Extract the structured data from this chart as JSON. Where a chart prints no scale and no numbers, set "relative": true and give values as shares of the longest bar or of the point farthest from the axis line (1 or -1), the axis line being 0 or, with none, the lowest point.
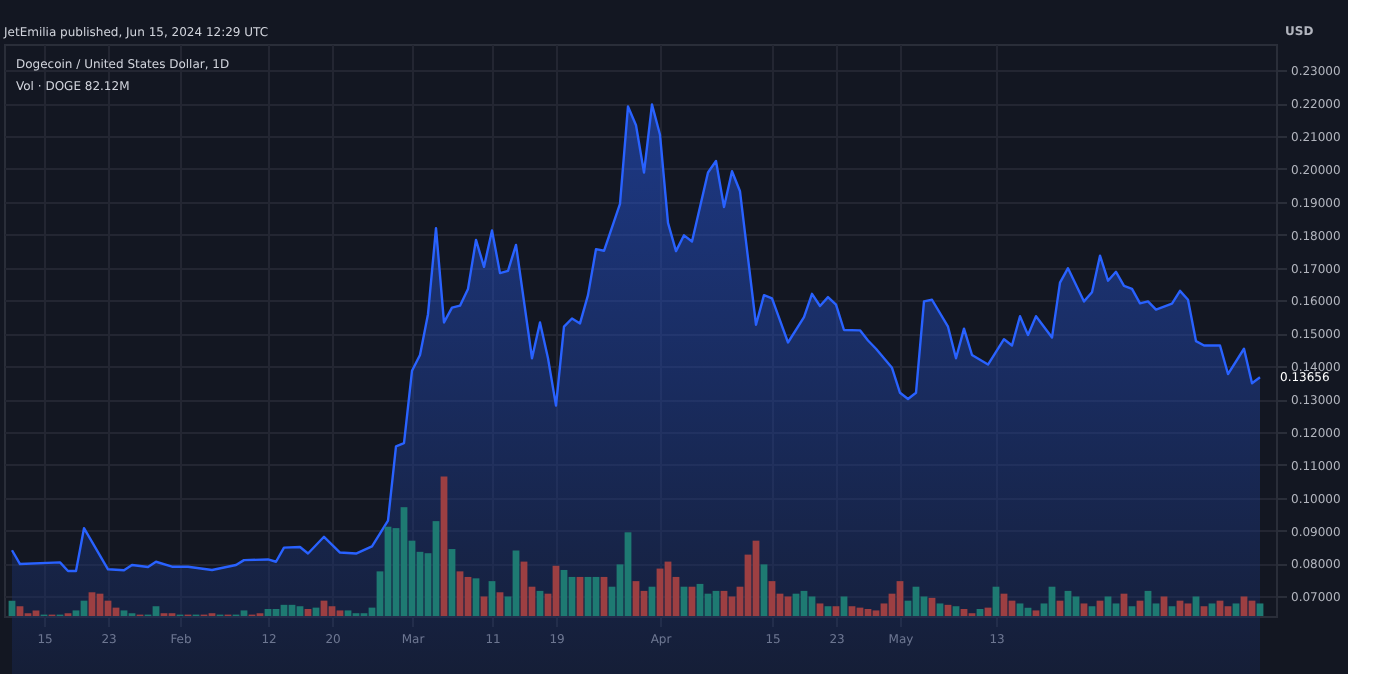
{
  "chart_data": [
    {
      "type": "area",
      "title": "Dogecoin / United States Dollar, 1D",
      "subtitle": "Vol · DOGE 82.12M",
      "ylabel": "USD",
      "annotations": [
        "JetEmilia published, Jun 15, 2024 12:29 UTC",
        {
          "text": "0.13656",
          "x": "2024-06-15",
          "y": 0.13656
        }
      ],
      "series": [
        {
          "color": "#2962ff",
          "x": [
            "2024-01-11",
            "2024-01-12",
            "2024-01-17",
            "2024-01-18",
            "2024-01-19",
            "2024-01-20",
            "2024-01-23",
            "2024-01-25",
            "2024-01-26",
            "2024-01-28",
            "2024-01-29",
            "2024-01-31",
            "2024-02-02",
            "2024-02-05",
            "2024-02-08",
            "2024-02-09",
            "2024-02-12",
            "2024-02-13",
            "2024-02-14",
            "2024-02-16",
            "2024-02-17",
            "2024-02-19",
            "2024-02-21",
            "2024-02-23",
            "2024-02-25",
            "2024-02-27",
            "2024-02-28",
            "2024-02-29",
            "2024-03-01",
            "2024-03-02",
            "2024-03-03",
            "2024-03-04",
            "2024-03-05",
            "2024-03-06",
            "2024-03-07",
            "2024-03-08",
            "2024-03-09",
            "2024-03-10",
            "2024-03-11",
            "2024-03-12",
            "2024-03-13",
            "2024-03-14",
            "2024-03-16",
            "2024-03-17",
            "2024-03-18",
            "2024-03-19",
            "2024-03-20",
            "2024-03-21",
            "2024-03-22",
            "2024-03-23",
            "2024-03-24",
            "2024-03-25",
            "2024-03-27",
            "2024-03-28",
            "2024-03-29",
            "2024-03-30",
            "2024-03-31",
            "2024-04-01",
            "2024-04-02",
            "2024-04-03",
            "2024-04-04",
            "2024-04-05",
            "2024-04-07",
            "2024-04-08",
            "2024-04-09",
            "2024-04-10",
            "2024-04-11",
            "2024-04-13",
            "2024-04-14",
            "2024-04-15",
            "2024-04-17",
            "2024-04-19",
            "2024-04-20",
            "2024-04-21",
            "2024-04-22",
            "2024-04-23",
            "2024-04-24",
            "2024-04-26",
            "2024-04-27",
            "2024-04-28",
            "2024-04-30",
            "2024-05-01",
            "2024-05-02",
            "2024-05-03",
            "2024-05-04",
            "2024-05-05",
            "2024-05-07",
            "2024-05-08",
            "2024-05-09",
            "2024-05-10",
            "2024-05-12",
            "2024-05-14",
            "2024-05-15",
            "2024-05-16",
            "2024-05-17",
            "2024-05-18",
            "2024-05-20",
            "2024-05-21",
            "2024-05-22",
            "2024-05-24",
            "2024-05-25",
            "2024-05-26",
            "2024-05-27",
            "2024-05-28",
            "2024-05-29",
            "2024-05-30",
            "2024-05-31",
            "2024-06-01",
            "2024-06-02",
            "2024-06-04",
            "2024-06-05",
            "2024-06-06",
            "2024-06-07",
            "2024-06-08",
            "2024-06-10",
            "2024-06-11",
            "2024-06-13",
            "2024-06-14",
            "2024-06-15"
          ],
          "values": [
            0.084,
            0.0798,
            0.0803,
            0.0777,
            0.0777,
            0.0907,
            0.0782,
            0.0779,
            0.0795,
            0.0789,
            0.0805,
            0.079,
            0.079,
            0.078,
            0.0795,
            0.081,
            0.0812,
            0.0805,
            0.0848,
            0.085,
            0.083,
            0.0881,
            0.0833,
            0.083,
            0.0852,
            0.093,
            0.1156,
            0.1166,
            0.1386,
            0.1434,
            0.1558,
            0.182,
            0.1533,
            0.1578,
            0.1584,
            0.1635,
            0.1784,
            0.1702,
            0.1813,
            0.1683,
            0.169,
            0.1769,
            0.1424,
            0.1533,
            0.1424,
            0.128,
            0.152,
            0.1545,
            0.153,
            0.1616,
            0.1756,
            0.1751,
            0.1894,
            0.219,
            0.2133,
            0.1989,
            0.2196,
            0.2104,
            0.1836,
            0.175,
            0.1798,
            0.1779,
            0.1989,
            0.2024,
            0.1884,
            0.1993,
            0.1932,
            0.1526,
            0.1616,
            0.1606,
            0.1472,
            0.1549,
            0.162,
            0.1583,
            0.161,
            0.1587,
            0.151,
            0.1509,
            0.1478,
            0.1453,
            0.1395,
            0.1319,
            0.13,
            0.1319,
            0.1597,
            0.1602,
            0.152,
            0.1424,
            0.1514,
            0.1434,
            0.1405,
            0.1482,
            0.1463,
            0.1552,
            0.1495,
            0.1552,
            0.1487,
            0.1654,
            0.1698,
            0.1597,
            0.1625,
            0.1736,
            0.166,
            0.1687,
            0.1644,
            0.1635,
            0.1591,
            0.1597,
            0.1572,
            0.159,
            0.1629,
            0.1602,
            0.1476,
            0.1463,
            0.1463,
            0.1376,
            0.1453,
            0.1348,
            0.1366
          ]
        }
      ],
      "xlim": [
        "2024-01-10",
        "2024-06-17"
      ],
      "xticks": [
        {
          "value": "2024-01-15",
          "label": "15"
        },
        {
          "value": "2024-01-23",
          "label": "23"
        },
        {
          "value": "2024-02-01",
          "label": "Feb"
        },
        {
          "value": "2024-02-12",
          "label": "12"
        },
        {
          "value": "2024-02-20",
          "label": "20"
        },
        {
          "value": "2024-03-01",
          "label": "Mar"
        },
        {
          "value": "2024-03-11",
          "label": "11"
        },
        {
          "value": "2024-03-19",
          "label": "19"
        },
        {
          "value": "2024-04-01",
          "label": "Apr"
        },
        {
          "value": "2024-04-15",
          "label": "15"
        },
        {
          "value": "2024-04-23",
          "label": "23"
        },
        {
          "value": "2024-05-01",
          "label": "May"
        },
        {
          "value": "2024-05-13",
          "label": "13"
        }
      ],
      "ylim": [
        0.064,
        0.238
      ],
      "yticks": [
        {
          "value": 0.07,
          "label": "0.07000"
        },
        {
          "value": 0.08,
          "label": "0.08000"
        },
        {
          "value": 0.09,
          "label": "0.09000"
        },
        {
          "value": 0.1,
          "label": "0.10000"
        },
        {
          "value": 0.11,
          "label": "0.11000"
        },
        {
          "value": 0.12,
          "label": "0.12000"
        },
        {
          "value": 0.13,
          "label": "0.13000"
        },
        {
          "value": 0.14,
          "label": "0.14000"
        },
        {
          "value": 0.15,
          "label": "0.15000"
        },
        {
          "value": 0.16,
          "label": "0.16000"
        },
        {
          "value": 0.17,
          "label": "0.17000"
        },
        {
          "value": 0.18,
          "label": "0.18000"
        },
        {
          "value": 0.19,
          "label": "0.19000"
        },
        {
          "value": 0.2,
          "label": "0.20000"
        },
        {
          "value": 0.21,
          "label": "0.21000"
        },
        {
          "value": 0.22,
          "label": "0.22000"
        },
        {
          "value": 0.23,
          "label": "0.23000"
        }
      ],
      "grid": true
    },
    {
      "type": "bar",
      "relative": true,
      "xlim": [
        "2024-01-10",
        "2024-06-17"
      ],
      "x": [
        "2024-01-11",
        "2024-01-12",
        "2024-01-13",
        "2024-01-14",
        "2024-01-15",
        "2024-01-16",
        "2024-01-17",
        "2024-01-18",
        "2024-01-19",
        "2024-01-20",
        "2024-01-21",
        "2024-01-22",
        "2024-01-23",
        "2024-01-24",
        "2024-01-25",
        "2024-01-26",
        "2024-01-27",
        "2024-01-28",
        "2024-01-29",
        "2024-01-30",
        "2024-01-31",
        "2024-02-01",
        "2024-02-02",
        "2024-02-03",
        "2024-02-04",
        "2024-02-05",
        "2024-02-06",
        "2024-02-07",
        "2024-02-08",
        "2024-02-09",
        "2024-02-10",
        "2024-02-11",
        "2024-02-12",
        "2024-02-13",
        "2024-02-14",
        "2024-02-15",
        "2024-02-16",
        "2024-02-17",
        "2024-02-18",
        "2024-02-19",
        "2024-02-20",
        "2024-02-21",
        "2024-02-22",
        "2024-02-23",
        "2024-02-24",
        "2024-02-25",
        "2024-02-26",
        "2024-02-27",
        "2024-02-28",
        "2024-02-29",
        "2024-03-01",
        "2024-03-02",
        "2024-03-03",
        "2024-03-04",
        "2024-03-05",
        "2024-03-06",
        "2024-03-07",
        "2024-03-08",
        "2024-03-09",
        "2024-03-10",
        "2024-03-11",
        "2024-03-12",
        "2024-03-13",
        "2024-03-14",
        "2024-03-15",
        "2024-03-16",
        "2024-03-17",
        "2024-03-18",
        "2024-03-19",
        "2024-03-20",
        "2024-03-21",
        "2024-03-22",
        "2024-03-23",
        "2024-03-24",
        "2024-03-25",
        "2024-03-26",
        "2024-03-27",
        "2024-03-28",
        "2024-03-29",
        "2024-03-30",
        "2024-03-31",
        "2024-04-01",
        "2024-04-02",
        "2024-04-03",
        "2024-04-04",
        "2024-04-05",
        "2024-04-06",
        "2024-04-07",
        "2024-04-08",
        "2024-04-09",
        "2024-04-10",
        "2024-04-11",
        "2024-04-12",
        "2024-04-13",
        "2024-04-14",
        "2024-04-15",
        "2024-04-16",
        "2024-04-17",
        "2024-04-18",
        "2024-04-19",
        "2024-04-20",
        "2024-04-21",
        "2024-04-22",
        "2024-04-23",
        "2024-04-24",
        "2024-04-25",
        "2024-04-26",
        "2024-04-27",
        "2024-04-28",
        "2024-04-29",
        "2024-04-30",
        "2024-05-01",
        "2024-05-02",
        "2024-05-03",
        "2024-05-04",
        "2024-05-05",
        "2024-05-06",
        "2024-05-07",
        "2024-05-08",
        "2024-05-09",
        "2024-05-10",
        "2024-05-11",
        "2024-05-12",
        "2024-05-13",
        "2024-05-14",
        "2024-05-15",
        "2024-05-16",
        "2024-05-17",
        "2024-05-18",
        "2024-05-19",
        "2024-05-20",
        "2024-05-21",
        "2024-05-22",
        "2024-05-23",
        "2024-05-24",
        "2024-05-25",
        "2024-05-26",
        "2024-05-27",
        "2024-05-28",
        "2024-05-29",
        "2024-05-30",
        "2024-05-31",
        "2024-06-01",
        "2024-06-02",
        "2024-06-03",
        "2024-06-04",
        "2024-06-05",
        "2024-06-06",
        "2024-06-07",
        "2024-06-08",
        "2024-06-09",
        "2024-06-10",
        "2024-06-11",
        "2024-06-12",
        "2024-06-13",
        "2024-06-14",
        "2024-06-15"
      ],
      "values": [
        0.11,
        0.07,
        0.02,
        0.04,
        0.01,
        0.01,
        0.01,
        0.02,
        0.04,
        0.11,
        0.17,
        0.16,
        0.11,
        0.06,
        0.04,
        0.02,
        0.01,
        0.01,
        0.07,
        0.02,
        0.02,
        0.01,
        0.01,
        0.01,
        0.01,
        0.02,
        0.01,
        0.01,
        0.01,
        0.04,
        0.01,
        0.02,
        0.05,
        0.05,
        0.08,
        0.08,
        0.07,
        0.05,
        0.06,
        0.11,
        0.07,
        0.04,
        0.04,
        0.02,
        0.02,
        0.06,
        0.32,
        0.64,
        0.63,
        0.78,
        0.54,
        0.46,
        0.45,
        0.68,
        1,
        0.48,
        0.32,
        0.28,
        0.27,
        0.14,
        0.25,
        0.17,
        0.14,
        0.47,
        0.39,
        0.21,
        0.18,
        0.16,
        0.36,
        0.33,
        0.28,
        0.28,
        0.28,
        0.28,
        0.28,
        0.21,
        0.37,
        0.6,
        0.25,
        0.18,
        0.21,
        0.34,
        0.39,
        0.28,
        0.21,
        0.21,
        0.23,
        0.16,
        0.18,
        0.18,
        0.14,
        0.21,
        0.44,
        0.54,
        0.37,
        0.25,
        0.16,
        0.14,
        0.16,
        0.18,
        0.14,
        0.09,
        0.07,
        0.07,
        0.14,
        0.07,
        0.06,
        0.05,
        0.04,
        0.09,
        0.16,
        0.25,
        0.11,
        0.21,
        0.14,
        0.13,
        0.09,
        0.08,
        0.07,
        0.05,
        0.02,
        0.05,
        0.06,
        0.21,
        0.16,
        0.11,
        0.09,
        0.06,
        0.04,
        0.09,
        0.21,
        0.11,
        0.18,
        0.14,
        0.09,
        0.07,
        0.11,
        0.14,
        0.09,
        0.16,
        0.07,
        0.11,
        0.18,
        0.09,
        0.14,
        0.07,
        0.11,
        0.09,
        0.14,
        0.07,
        0.09,
        0.11,
        0.07,
        0.09,
        0.14,
        0.11,
        0.09
      ],
      "colors": [
        "#1e7a72",
        "#9c3f42",
        "#9c3f42",
        "#9c3f42",
        "#1e7a72",
        "#9c3f42",
        "#1e7a72",
        "#9c3f42",
        "#1e7a72",
        "#1e7a72",
        "#9c3f42",
        "#9c3f42",
        "#9c3f42",
        "#9c3f42",
        "#1e7a72",
        "#1e7a72",
        "#9c3f42",
        "#1e7a72",
        "#1e7a72",
        "#9c3f42",
        "#9c3f42",
        "#1e7a72",
        "#9c3f42",
        "#1e7a72",
        "#9c3f42",
        "#9c3f42",
        "#1e7a72",
        "#9c3f42",
        "#1e7a72",
        "#1e7a72",
        "#9c3f42",
        "#9c3f42",
        "#1e7a72",
        "#1e7a72",
        "#1e7a72",
        "#1e7a72",
        "#1e7a72",
        "#9c3f42",
        "#1e7a72",
        "#9c3f42",
        "#9c3f42",
        "#9c3f42",
        "#1e7a72",
        "#1e7a72",
        "#1e7a72",
        "#1e7a72",
        "#1e7a72",
        "#1e7a72",
        "#1e7a72",
        "#1e7a72",
        "#1e7a72",
        "#1e7a72",
        "#1e7a72",
        "#1e7a72",
        "#9c3f42",
        "#1e7a72",
        "#9c3f42",
        "#9c3f42",
        "#1e7a72",
        "#9c3f42",
        "#1e7a72",
        "#9c3f42",
        "#1e7a72",
        "#1e7a72",
        "#9c3f42",
        "#9c3f42",
        "#1e7a72",
        "#9c3f42",
        "#9c3f42",
        "#1e7a72",
        "#1e7a72",
        "#9c3f42",
        "#1e7a72",
        "#1e7a72",
        "#9c3f42",
        "#1e7a72",
        "#1e7a72",
        "#1e7a72",
        "#9c3f42",
        "#9c3f42",
        "#1e7a72",
        "#9c3f42",
        "#9c3f42",
        "#9c3f42",
        "#1e7a72",
        "#9c3f42",
        "#1e7a72",
        "#1e7a72",
        "#1e7a72",
        "#9c3f42",
        "#9c3f42",
        "#9c3f42",
        "#9c3f42",
        "#9c3f42",
        "#1e7a72",
        "#9c3f42",
        "#9c3f42",
        "#9c3f42",
        "#1e7a72",
        "#1e7a72",
        "#1e7a72",
        "#9c3f42",
        "#1e7a72",
        "#9c3f42",
        "#1e7a72",
        "#9c3f42",
        "#9c3f42",
        "#9c3f42",
        "#9c3f42",
        "#9c3f42",
        "#9c3f42",
        "#9c3f42",
        "#1e7a72",
        "#1e7a72",
        "#1e7a72",
        "#9c3f42",
        "#1e7a72",
        "#9c3f42",
        "#1e7a72",
        "#9c3f42",
        "#9c3f42",
        "#1e7a72",
        "#9c3f42",
        "#1e7a72",
        "#9c3f42",
        "#9c3f42",
        "#1e7a72",
        "#1e7a72",
        "#9c3f42",
        "#1e7a72",
        "#1e7a72",
        "#9c3f42",
        "#1e7a72",
        "#1e7a72",
        "#9c3f42",
        "#1e7a72",
        "#9c3f42",
        "#1e7a72",
        "#1e7a72",
        "#9c3f42",
        "#1e7a72",
        "#9c3f42",
        "#1e7a72",
        "#1e7a72",
        "#9c3f42",
        "#1e7a72",
        "#9c3f42",
        "#9c3f42",
        "#1e7a72",
        "#9c3f42",
        "#1e7a72",
        "#9c3f42",
        "#9c3f42",
        "#1e7a72",
        "#9c3f42",
        "#9c3f42",
        "#1e7a72"
      ]
    }
  ]
}
